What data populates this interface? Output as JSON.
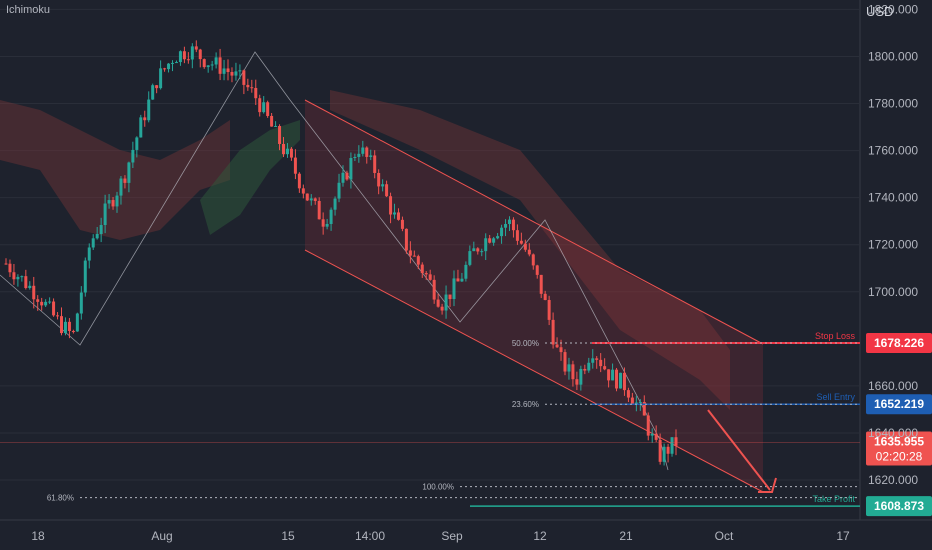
{
  "indicator_label": "Ichimoku",
  "currency": "USD",
  "colors": {
    "bg": "#1e222d",
    "up": "#26a69a",
    "down": "#ef5350",
    "stop": "#f23645",
    "entry": "#1e5eb3",
    "profit": "#22ab94",
    "cloud_red": "#8b3a3a",
    "cloud_green": "#2d5a3c",
    "grid": "#2a2e39"
  },
  "chart_data": {
    "type": "candlestick",
    "ylim": [
      1603,
      1824
    ],
    "y_ticks": [
      {
        "value": 1820,
        "label": "1820.000"
      },
      {
        "value": 1800,
        "label": "1800.000"
      },
      {
        "value": 1780,
        "label": "1780.000"
      },
      {
        "value": 1760,
        "label": "1760.000"
      },
      {
        "value": 1740,
        "label": "1740.000"
      },
      {
        "value": 1720,
        "label": "1720.000"
      },
      {
        "value": 1700,
        "label": "1700.000"
      },
      {
        "value": 1660,
        "label": "1660.000"
      },
      {
        "value": 1640,
        "label": "1640.000"
      },
      {
        "value": 1620,
        "label": "1620.000"
      }
    ],
    "x_ticks": [
      "18",
      "Aug",
      "15",
      "14:00",
      "Sep",
      "12",
      "21",
      "Oct",
      "17"
    ],
    "levels": [
      {
        "name": "Stop Loss",
        "value": 1678.226,
        "label": "1678.226",
        "color": "stop"
      },
      {
        "name": "Sell Entry",
        "value": 1652.219,
        "label": "1652.219",
        "color": "entry"
      },
      {
        "name": "Take Profit",
        "value": 1608.873,
        "label": "1608.873",
        "color": "profit"
      }
    ],
    "current_price": {
      "label": "1635.955",
      "countdown": "02:20:28",
      "value": 1635.955
    },
    "fib_labels": [
      {
        "label": "50.00%",
        "value": 1678.2
      },
      {
        "label": "23.60%",
        "value": 1652.2
      },
      {
        "label": "100.00%",
        "value": 1617.2
      },
      {
        "label": "61.80%",
        "value": 1612.5
      }
    ],
    "swing_path": [
      1700,
      1680,
      1808,
      1792,
      1690,
      1735,
      1640,
      1628
    ],
    "close_path": [
      1712,
      1705,
      1698,
      1688,
      1681,
      1720,
      1735,
      1748,
      1770,
      1790,
      1800,
      1803,
      1798,
      1795,
      1790,
      1782,
      1768,
      1755,
      1740,
      1730,
      1745,
      1762,
      1752,
      1735,
      1718,
      1708,
      1695,
      1704,
      1718,
      1725,
      1730,
      1718,
      1700,
      1672,
      1662,
      1676,
      1665,
      1660,
      1648,
      1630,
      1636
    ]
  }
}
